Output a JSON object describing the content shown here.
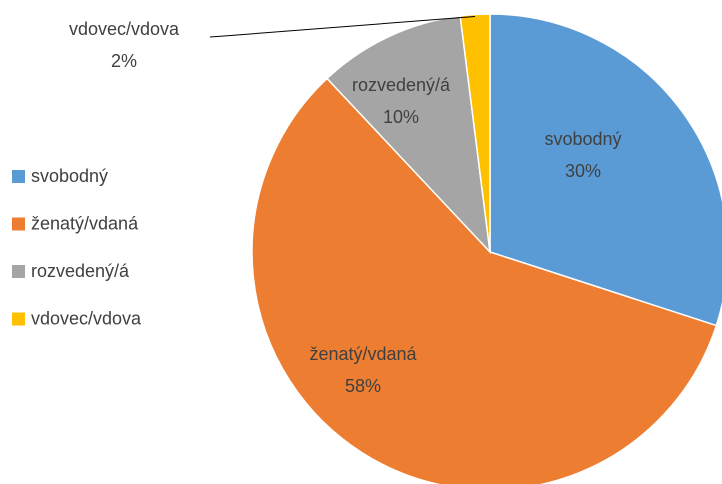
{
  "chart_data": {
    "type": "pie",
    "categories": [
      "svobodný",
      "ženatý/vdaná",
      "rozvedený/á",
      "vdovec/vdova"
    ],
    "values": [
      30,
      58,
      10,
      2
    ],
    "value_labels": [
      "30%",
      "58%",
      "10%",
      "2%"
    ],
    "colors": [
      "#5b9bd5",
      "#ed7d31",
      "#a5a5a5",
      "#ffc000"
    ],
    "legend": "left"
  }
}
